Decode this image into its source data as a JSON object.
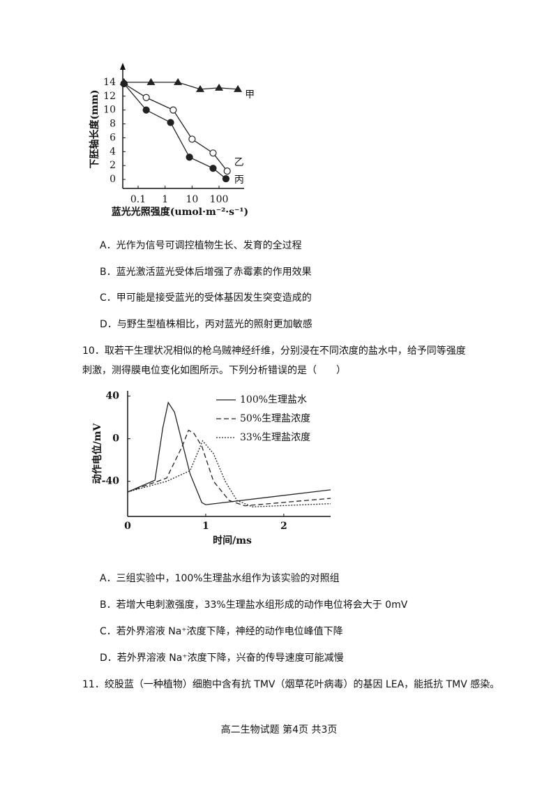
{
  "figure_1": {
    "type": "line",
    "y_label": "下胚轴长度(mm)",
    "x_label": "蓝光光照强度(umol·m⁻²·s⁻¹)",
    "log_x": true,
    "xlim": [
      0.027,
      850
    ],
    "ylim": [
      -1.3,
      15.8
    ],
    "xticks": [
      0.1,
      1,
      10,
      100
    ],
    "yticks": [
      0,
      2,
      4,
      6,
      8,
      10,
      12,
      14
    ],
    "series": [
      {
        "name": "甲",
        "marker": "triangle",
        "color": "#222",
        "x": [
          0.03,
          0.3,
          3,
          20,
          100,
          500
        ],
        "values": [
          14,
          14,
          14,
          13,
          13.2,
          13
        ]
      },
      {
        "name": "乙",
        "marker": "open-circle",
        "color": "#222",
        "x": [
          0.03,
          0.2,
          2,
          10,
          60,
          200
        ],
        "values": [
          13.8,
          11.8,
          10,
          5.8,
          3.8,
          1.2
        ]
      },
      {
        "name": "丙",
        "marker": "filled-circle",
        "color": "#222",
        "x": [
          0.03,
          0.2,
          1.6,
          8,
          60,
          180
        ],
        "values": [
          13.8,
          10,
          8.2,
          3.2,
          1.6,
          0.1
        ]
      }
    ]
  },
  "options_9": [
    "A．光作为信号可调控植物生长、发育的全过程",
    "B．蓝光激活蓝光受体后增强了赤霉素的作用效果",
    "C．甲可能是接受蓝光的受体基因发生突变造成的",
    "D．与野生型植株相比，丙对蓝光的照射更加敏感"
  ],
  "question_10": [
    "10．取若干生理状况相似的枪乌贼神经纤维，分别浸在不同浓度的盐水中，给予同等强度",
    "刺激，测得膜电位变化如图所示。下列分析错误的是（　　）"
  ],
  "figure_2": {
    "type": "line",
    "y_label": "动作电位/mV",
    "x_label": "时间/ms",
    "xlim": [
      0,
      2.6
    ],
    "ylim": [
      -73,
      45
    ],
    "xticks": [
      0,
      1,
      2
    ],
    "yticks": [
      40,
      0,
      -40
    ],
    "series": [
      {
        "name": "100%生理盐水",
        "dash": "solid",
        "color": "#222",
        "x": [
          0,
          0.35,
          0.45,
          0.52,
          0.6,
          0.8,
          0.95,
          1.0,
          2.6
        ],
        "values": [
          -50,
          -39,
          10,
          34,
          25,
          -33,
          -60,
          -62,
          -48
        ]
      },
      {
        "name": "50%生理盐浓度",
        "dash": "dashed",
        "color": "#222",
        "x": [
          0,
          0.5,
          0.7,
          0.78,
          0.85,
          0.95,
          1.1,
          1.3,
          1.5,
          2.6
        ],
        "values": [
          -50,
          -37,
          -7,
          8,
          5,
          -7,
          -40,
          -58,
          -63,
          -56
        ]
      },
      {
        "name": "33%生理盐浓度",
        "dash": "dotted",
        "color": "#222",
        "x": [
          0,
          0.5,
          0.8,
          0.96,
          1.1,
          1.25,
          1.4,
          1.6,
          2.6
        ],
        "values": [
          -50,
          -40,
          -30,
          -2,
          -14,
          -40,
          -58,
          -64,
          -61
        ]
      }
    ]
  },
  "options_10": [
    "A．三组实验中，100%生理盐水组作为该实验的对照组",
    "B．若增大电刺激强度，33%生理盐水组形成的动作电位将会大于 0mV",
    "C．若外界溶液 Na⁺浓度下降，神经的动作电位峰值下降",
    "D．若外界溶液 Na⁺浓度下降，兴奋的传导速度可能减慢"
  ],
  "question_11": "11．绞股蓝（一种植物）细胞中含有抗 TMV（烟草花叶病毒）的基因 LEA，能抵抗 TMV 感染。",
  "footer": "高二生物试题  第4页  共3页"
}
